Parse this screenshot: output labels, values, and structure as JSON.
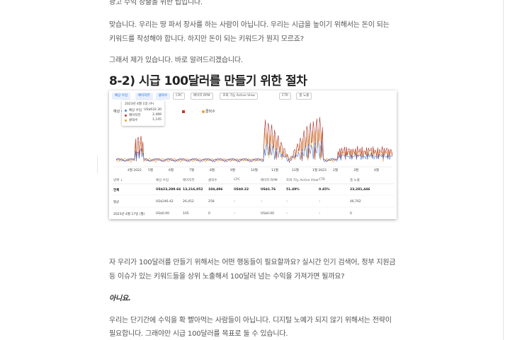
{
  "document": {
    "top_line": "광고 수익 창출을 위한 팁입니다.",
    "para1": [
      "맞습니다. 우리는 땅 파서 장사를 하는 사람이 아닙니다. 우리는 시급을 높이기 위해서는 돈이 되는",
      "키워드를 작성해야 합니다. 하지만 돈이 되는 키워드가 뭔지 모르죠?"
    ],
    "para2": [
      "그래서 제가 있습니다. 바로 알려드리겠습니다."
    ],
    "heading": "8-2) 시급 100달러를 만들기 위한 절차",
    "screenshot": {
      "tabs": [
        "예상 수입",
        "페이지뷰",
        "클릭수",
        "CPC",
        "페이지 RPM",
        "조회 가능 Active View",
        "CTR",
        "총 노출"
      ],
      "tooltip": {
        "date": "2023년 4월 1일 (수)",
        "rows": [
          [
            "예상 수입",
            "US$632.30"
          ],
          [
            "페이지뷰",
            "2,489"
          ],
          [
            "클릭수",
            "1,145"
          ]
        ]
      },
      "legend": [
        "예상 수입",
        "클릭수"
      ],
      "x_labels": [
        "4월 2022",
        "5월",
        "6월",
        "7월",
        "8월",
        "9월",
        "10월",
        "11월",
        "12월",
        "1월 2023",
        "2월",
        "3월",
        "4월"
      ],
      "table": {
        "headers": [
          "날짜 ↓",
          "예상 수입",
          "페이지뷰",
          "클릭수",
          "CPC",
          "페이지 RPM",
          "조회 가능 Active View",
          "CTR",
          "총 노출"
        ],
        "rows": [
          [
            "전체",
            "US$23,289.66",
            "13,216,052",
            "104,496",
            "US$0.22",
            "US$1.76",
            "51.49%",
            "0.45%",
            "23,281,446"
          ],
          [
            "평균",
            "US$246.42",
            "26,452",
            "258",
            "–",
            "–",
            "–",
            "–",
            "46,762"
          ],
          [
            "2023년 4월 17일 (월)",
            "US$0.00",
            "105",
            "0",
            "–",
            "US$0.00",
            "–",
            "–",
            "0"
          ]
        ]
      }
    },
    "para3": [
      "자 우리가 100달러를 만들기 위해서는 어떤 행동들이 필요할까요? 실시간 인기 검색어, 정부 지원금",
      "등 이슈가 있는 키워드들을 상위 노출해서 100달러 넘는 수익을 가져가면 될까요?"
    ],
    "emphasis": "아니요.",
    "para4": [
      "우리는 단기간에 수익을 확 빨아먹는 사람들이 아닙니다. 디지털 노예가 되지 않기 위해서는 전략이",
      "필요합니다. 그래야만 시급 100달러를 목표로 둘 수 있습니다."
    ]
  }
}
